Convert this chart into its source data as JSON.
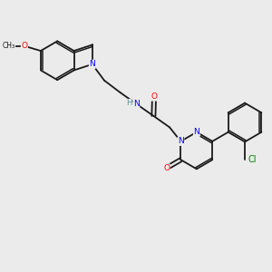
{
  "background_color": "#ebebeb",
  "bond_color": "#1a1a1a",
  "atom_colors": {
    "N": "#0000ff",
    "O": "#ff0000",
    "Cl": "#008000",
    "C": "#1a1a1a",
    "H": "#5a9090"
  },
  "figsize": [
    3.0,
    3.0
  ],
  "dpi": 100
}
